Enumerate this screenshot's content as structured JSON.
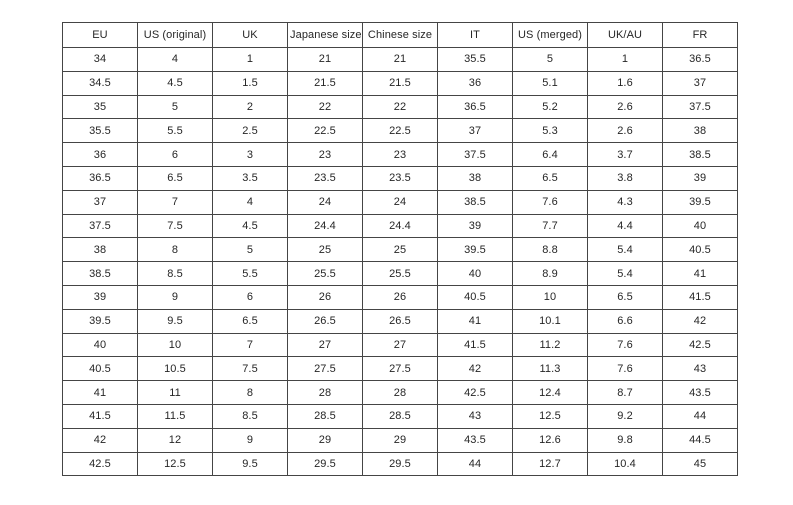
{
  "colors": {
    "border": "#454545",
    "text": "#262626",
    "background": "#ffffff"
  },
  "table": {
    "headers": [
      "EU",
      "US (original)",
      "UK",
      "Japanese size",
      "Chinese size",
      "IT",
      "US (merged)",
      "UK/AU",
      "FR"
    ],
    "rows": [
      [
        "34",
        "4",
        "1",
        "21",
        "21",
        "35.5",
        "5",
        "1",
        "36.5"
      ],
      [
        "34.5",
        "4.5",
        "1.5",
        "21.5",
        "21.5",
        "36",
        "5.1",
        "1.6",
        "37"
      ],
      [
        "35",
        "5",
        "2",
        "22",
        "22",
        "36.5",
        "5.2",
        "2.6",
        "37.5"
      ],
      [
        "35.5",
        "5.5",
        "2.5",
        "22.5",
        "22.5",
        "37",
        "5.3",
        "2.6",
        "38"
      ],
      [
        "36",
        "6",
        "3",
        "23",
        "23",
        "37.5",
        "6.4",
        "3.7",
        "38.5"
      ],
      [
        "36.5",
        "6.5",
        "3.5",
        "23.5",
        "23.5",
        "38",
        "6.5",
        "3.8",
        "39"
      ],
      [
        "37",
        "7",
        "4",
        "24",
        "24",
        "38.5",
        "7.6",
        "4.3",
        "39.5"
      ],
      [
        "37.5",
        "7.5",
        "4.5",
        "24.4",
        "24.4",
        "39",
        "7.7",
        "4.4",
        "40"
      ],
      [
        "38",
        "8",
        "5",
        "25",
        "25",
        "39.5",
        "8.8",
        "5.4",
        "40.5"
      ],
      [
        "38.5",
        "8.5",
        "5.5",
        "25.5",
        "25.5",
        "40",
        "8.9",
        "5.4",
        "41"
      ],
      [
        "39",
        "9",
        "6",
        "26",
        "26",
        "40.5",
        "10",
        "6.5",
        "41.5"
      ],
      [
        "39.5",
        "9.5",
        "6.5",
        "26.5",
        "26.5",
        "41",
        "10.1",
        "6.6",
        "42"
      ],
      [
        "40",
        "10",
        "7",
        "27",
        "27",
        "41.5",
        "11.2",
        "7.6",
        "42.5"
      ],
      [
        "40.5",
        "10.5",
        "7.5",
        "27.5",
        "27.5",
        "42",
        "11.3",
        "7.6",
        "43"
      ],
      [
        "41",
        "11",
        "8",
        "28",
        "28",
        "42.5",
        "12.4",
        "8.7",
        "43.5"
      ],
      [
        "41.5",
        "11.5",
        "8.5",
        "28.5",
        "28.5",
        "43",
        "12.5",
        "9.2",
        "44"
      ],
      [
        "42",
        "12",
        "9",
        "29",
        "29",
        "43.5",
        "12.6",
        "9.8",
        "44.5"
      ],
      [
        "42.5",
        "12.5",
        "9.5",
        "29.5",
        "29.5",
        "44",
        "12.7",
        "10.4",
        "45"
      ]
    ]
  }
}
